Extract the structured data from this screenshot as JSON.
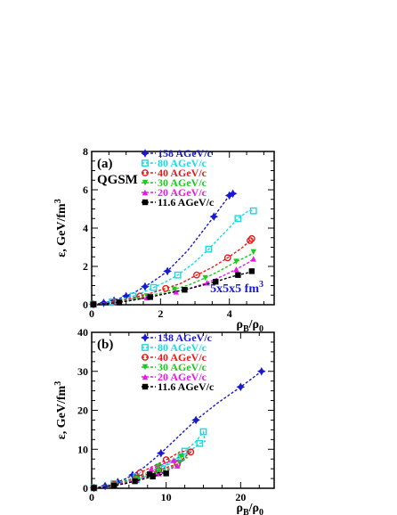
{
  "series_styles": [
    {
      "name": "158 AGeV/c",
      "color": "#1a1acc",
      "marker": "star"
    },
    {
      "name": "80 AGeV/c",
      "color": "#19d9e6",
      "marker": "open-square"
    },
    {
      "name": "40 AGeV/c",
      "color": "#e61a1a",
      "marker": "open-circle"
    },
    {
      "name": "30 AGeV/c",
      "color": "#19cc19",
      "marker": "down-triangle"
    },
    {
      "name": "20 AGeV/c",
      "color": "#e619e6",
      "marker": "up-triangle"
    },
    {
      "name": "11.6 AGeV/c",
      "color": "#000000",
      "marker": "filled-square"
    }
  ],
  "chart_data": [
    {
      "type": "scatter",
      "panel_label": "(a)",
      "model_label": "QGSM",
      "annotation_text": "5x5x5 fm",
      "annotation_sup": "3",
      "xlim": [
        0,
        5.3
      ],
      "ylim": [
        0,
        8
      ],
      "xticks": [
        0,
        2,
        4
      ],
      "yticks": [
        0,
        2,
        4,
        6,
        8
      ],
      "ylabel": "ε, GeV/fm",
      "ylabel_sup": "3",
      "xlabel_num": "ρ",
      "xlabel_num_sub": "B",
      "xlabel_den": "/ρ",
      "xlabel_den_sub": "0",
      "series": [
        {
          "name": "158 AGeV/c",
          "points": [
            [
              0.05,
              0.02
            ],
            [
              0.2,
              0.05
            ],
            [
              0.35,
              0.1
            ],
            [
              0.5,
              0.15
            ],
            [
              0.65,
              0.22
            ],
            [
              0.8,
              0.32
            ],
            [
              1.0,
              0.45
            ],
            [
              1.25,
              0.65
            ],
            [
              1.55,
              0.95
            ],
            [
              1.85,
              1.3
            ],
            [
              2.2,
              1.75
            ],
            [
              2.8,
              2.85
            ],
            [
              3.55,
              4.6
            ],
            [
              3.75,
              5.1
            ],
            [
              4.0,
              5.7
            ],
            [
              4.1,
              5.8
            ]
          ]
        },
        {
          "name": "80 AGeV/c",
          "points": [
            [
              0.05,
              0.02
            ],
            [
              0.3,
              0.06
            ],
            [
              0.6,
              0.15
            ],
            [
              0.9,
              0.3
            ],
            [
              1.2,
              0.45
            ],
            [
              1.5,
              0.65
            ],
            [
              1.8,
              0.9
            ],
            [
              2.1,
              1.15
            ],
            [
              2.5,
              1.55
            ],
            [
              2.95,
              2.15
            ],
            [
              3.4,
              2.9
            ],
            [
              3.85,
              3.75
            ],
            [
              4.25,
              4.5
            ],
            [
              4.55,
              4.9
            ],
            [
              4.7,
              4.9
            ]
          ]
        },
        {
          "name": "40 AGeV/c",
          "points": [
            [
              0.05,
              0.02
            ],
            [
              0.35,
              0.06
            ],
            [
              0.7,
              0.15
            ],
            [
              1.05,
              0.3
            ],
            [
              1.4,
              0.45
            ],
            [
              1.75,
              0.62
            ],
            [
              2.15,
              0.85
            ],
            [
              2.6,
              1.12
            ],
            [
              3.05,
              1.55
            ],
            [
              3.5,
              1.95
            ],
            [
              3.95,
              2.45
            ],
            [
              4.35,
              2.95
            ],
            [
              4.6,
              3.35
            ],
            [
              4.65,
              3.45
            ]
          ]
        },
        {
          "name": "30 AGeV/c",
          "points": [
            [
              0.05,
              0.02
            ],
            [
              0.4,
              0.06
            ],
            [
              0.8,
              0.15
            ],
            [
              1.2,
              0.3
            ],
            [
              1.6,
              0.45
            ],
            [
              2.0,
              0.6
            ],
            [
              2.4,
              0.8
            ],
            [
              2.85,
              1.05
            ],
            [
              3.3,
              1.4
            ],
            [
              3.75,
              1.8
            ],
            [
              4.2,
              2.25
            ],
            [
              4.6,
              2.6
            ],
            [
              4.7,
              2.75
            ]
          ]
        },
        {
          "name": "20 AGeV/c",
          "points": [
            [
              0.05,
              0.02
            ],
            [
              0.4,
              0.06
            ],
            [
              0.8,
              0.13
            ],
            [
              1.2,
              0.25
            ],
            [
              1.6,
              0.38
            ],
            [
              2.0,
              0.52
            ],
            [
              2.45,
              0.68
            ],
            [
              2.9,
              0.88
            ],
            [
              3.35,
              1.15
            ],
            [
              3.8,
              1.5
            ],
            [
              4.2,
              1.85
            ],
            [
              4.55,
              2.2
            ],
            [
              4.7,
              2.4
            ]
          ]
        },
        {
          "name": "11.6 AGeV/c",
          "points": [
            [
              0.05,
              0.02
            ],
            [
              0.4,
              0.05
            ],
            [
              0.8,
              0.12
            ],
            [
              1.25,
              0.25
            ],
            [
              1.7,
              0.4
            ],
            [
              2.2,
              0.6
            ],
            [
              2.7,
              0.78
            ],
            [
              3.15,
              0.98
            ],
            [
              3.6,
              1.2
            ],
            [
              3.95,
              1.4
            ],
            [
              4.25,
              1.55
            ],
            [
              4.5,
              1.65
            ],
            [
              4.65,
              1.75
            ]
          ]
        }
      ]
    },
    {
      "type": "scatter",
      "panel_label": "(b)",
      "xlim": [
        0,
        24.5
      ],
      "ylim": [
        0,
        40
      ],
      "xticks": [
        0,
        10,
        20
      ],
      "yticks": [
        0,
        10,
        20,
        30,
        40
      ],
      "ylabel": "ε, GeV/fm",
      "ylabel_sup": "3",
      "xlabel_num": "ρ",
      "xlabel_num_sub": "B",
      "xlabel_den": "/ρ",
      "xlabel_den_sub": "0",
      "series": [
        {
          "name": "158 AGeV/c",
          "points": [
            [
              0.3,
              0.1
            ],
            [
              1.0,
              0.3
            ],
            [
              1.8,
              0.6
            ],
            [
              2.6,
              1.0
            ],
            [
              3.5,
              1.6
            ],
            [
              4.5,
              2.4
            ],
            [
              5.5,
              3.4
            ],
            [
              7.2,
              5.6
            ],
            [
              9.3,
              9.0
            ],
            [
              11.5,
              13.0
            ],
            [
              14.0,
              17.5
            ],
            [
              17.0,
              22.0
            ],
            [
              20.0,
              26.0
            ],
            [
              22.8,
              30.0
            ]
          ]
        },
        {
          "name": "80 AGeV/c",
          "points": [
            [
              0.3,
              0.1
            ],
            [
              1.5,
              0.5
            ],
            [
              3.0,
              1.2
            ],
            [
              4.5,
              2.0
            ],
            [
              6.0,
              3.0
            ],
            [
              7.5,
              4.0
            ],
            [
              9.0,
              5.2
            ],
            [
              10.5,
              6.5
            ],
            [
              12.0,
              8.0
            ],
            [
              13.5,
              10.0
            ],
            [
              14.5,
              11.5
            ],
            [
              15.2,
              12.0
            ],
            [
              15.0,
              14.5
            ],
            [
              14.0,
              12.0
            ],
            [
              12.5,
              9.5
            ],
            [
              11.0,
              7.0
            ],
            [
              9.5,
              5.0
            ],
            [
              8.0,
              3.5
            ],
            [
              6.0,
              2.2
            ]
          ]
        },
        {
          "name": "40 AGeV/c",
          "points": [
            [
              0.3,
              0.1
            ],
            [
              1.5,
              0.4
            ],
            [
              3.0,
              1.0
            ],
            [
              4.5,
              1.8
            ],
            [
              6.0,
              2.6
            ],
            [
              7.5,
              3.6
            ],
            [
              9.0,
              4.6
            ],
            [
              10.0,
              5.3
            ],
            [
              11.5,
              6.2
            ],
            [
              12.5,
              8.0
            ],
            [
              13.3,
              9.3
            ],
            [
              12.0,
              9.5
            ],
            [
              10.0,
              7.3
            ],
            [
              8.0,
              5.4
            ],
            [
              6.5,
              4.0
            ]
          ]
        },
        {
          "name": "30 AGeV/c",
          "points": [
            [
              0.3,
              0.1
            ],
            [
              1.5,
              0.4
            ],
            [
              3.0,
              0.9
            ],
            [
              4.5,
              1.6
            ],
            [
              6.0,
              2.4
            ],
            [
              7.5,
              3.3
            ],
            [
              9.0,
              4.2
            ],
            [
              10.5,
              5.2
            ],
            [
              11.8,
              6.5
            ],
            [
              12.8,
              7.8
            ],
            [
              12.0,
              8.2
            ],
            [
              10.5,
              7.0
            ],
            [
              9.0,
              5.6
            ]
          ]
        },
        {
          "name": "20 AGeV/c",
          "points": [
            [
              0.3,
              0.1
            ],
            [
              1.5,
              0.4
            ],
            [
              3.0,
              0.8
            ],
            [
              4.5,
              1.4
            ],
            [
              6.0,
              2.1
            ],
            [
              7.5,
              2.9
            ],
            [
              9.0,
              3.8
            ],
            [
              10.2,
              4.6
            ],
            [
              11.5,
              5.8
            ],
            [
              12.2,
              7.0
            ],
            [
              11.0,
              7.2
            ],
            [
              9.5,
              6.2
            ],
            [
              8.0,
              5.0
            ]
          ]
        },
        {
          "name": "11.6 AGeV/c",
          "points": [
            [
              0.3,
              0.1
            ],
            [
              1.5,
              0.3
            ],
            [
              3.0,
              0.7
            ],
            [
              4.5,
              1.2
            ],
            [
              5.8,
              1.8
            ],
            [
              7.0,
              2.4
            ],
            [
              8.2,
              3.0
            ],
            [
              9.3,
              3.5
            ],
            [
              10.0,
              3.8
            ],
            [
              9.0,
              4.0
            ],
            [
              7.8,
              3.6
            ]
          ]
        }
      ]
    }
  ]
}
